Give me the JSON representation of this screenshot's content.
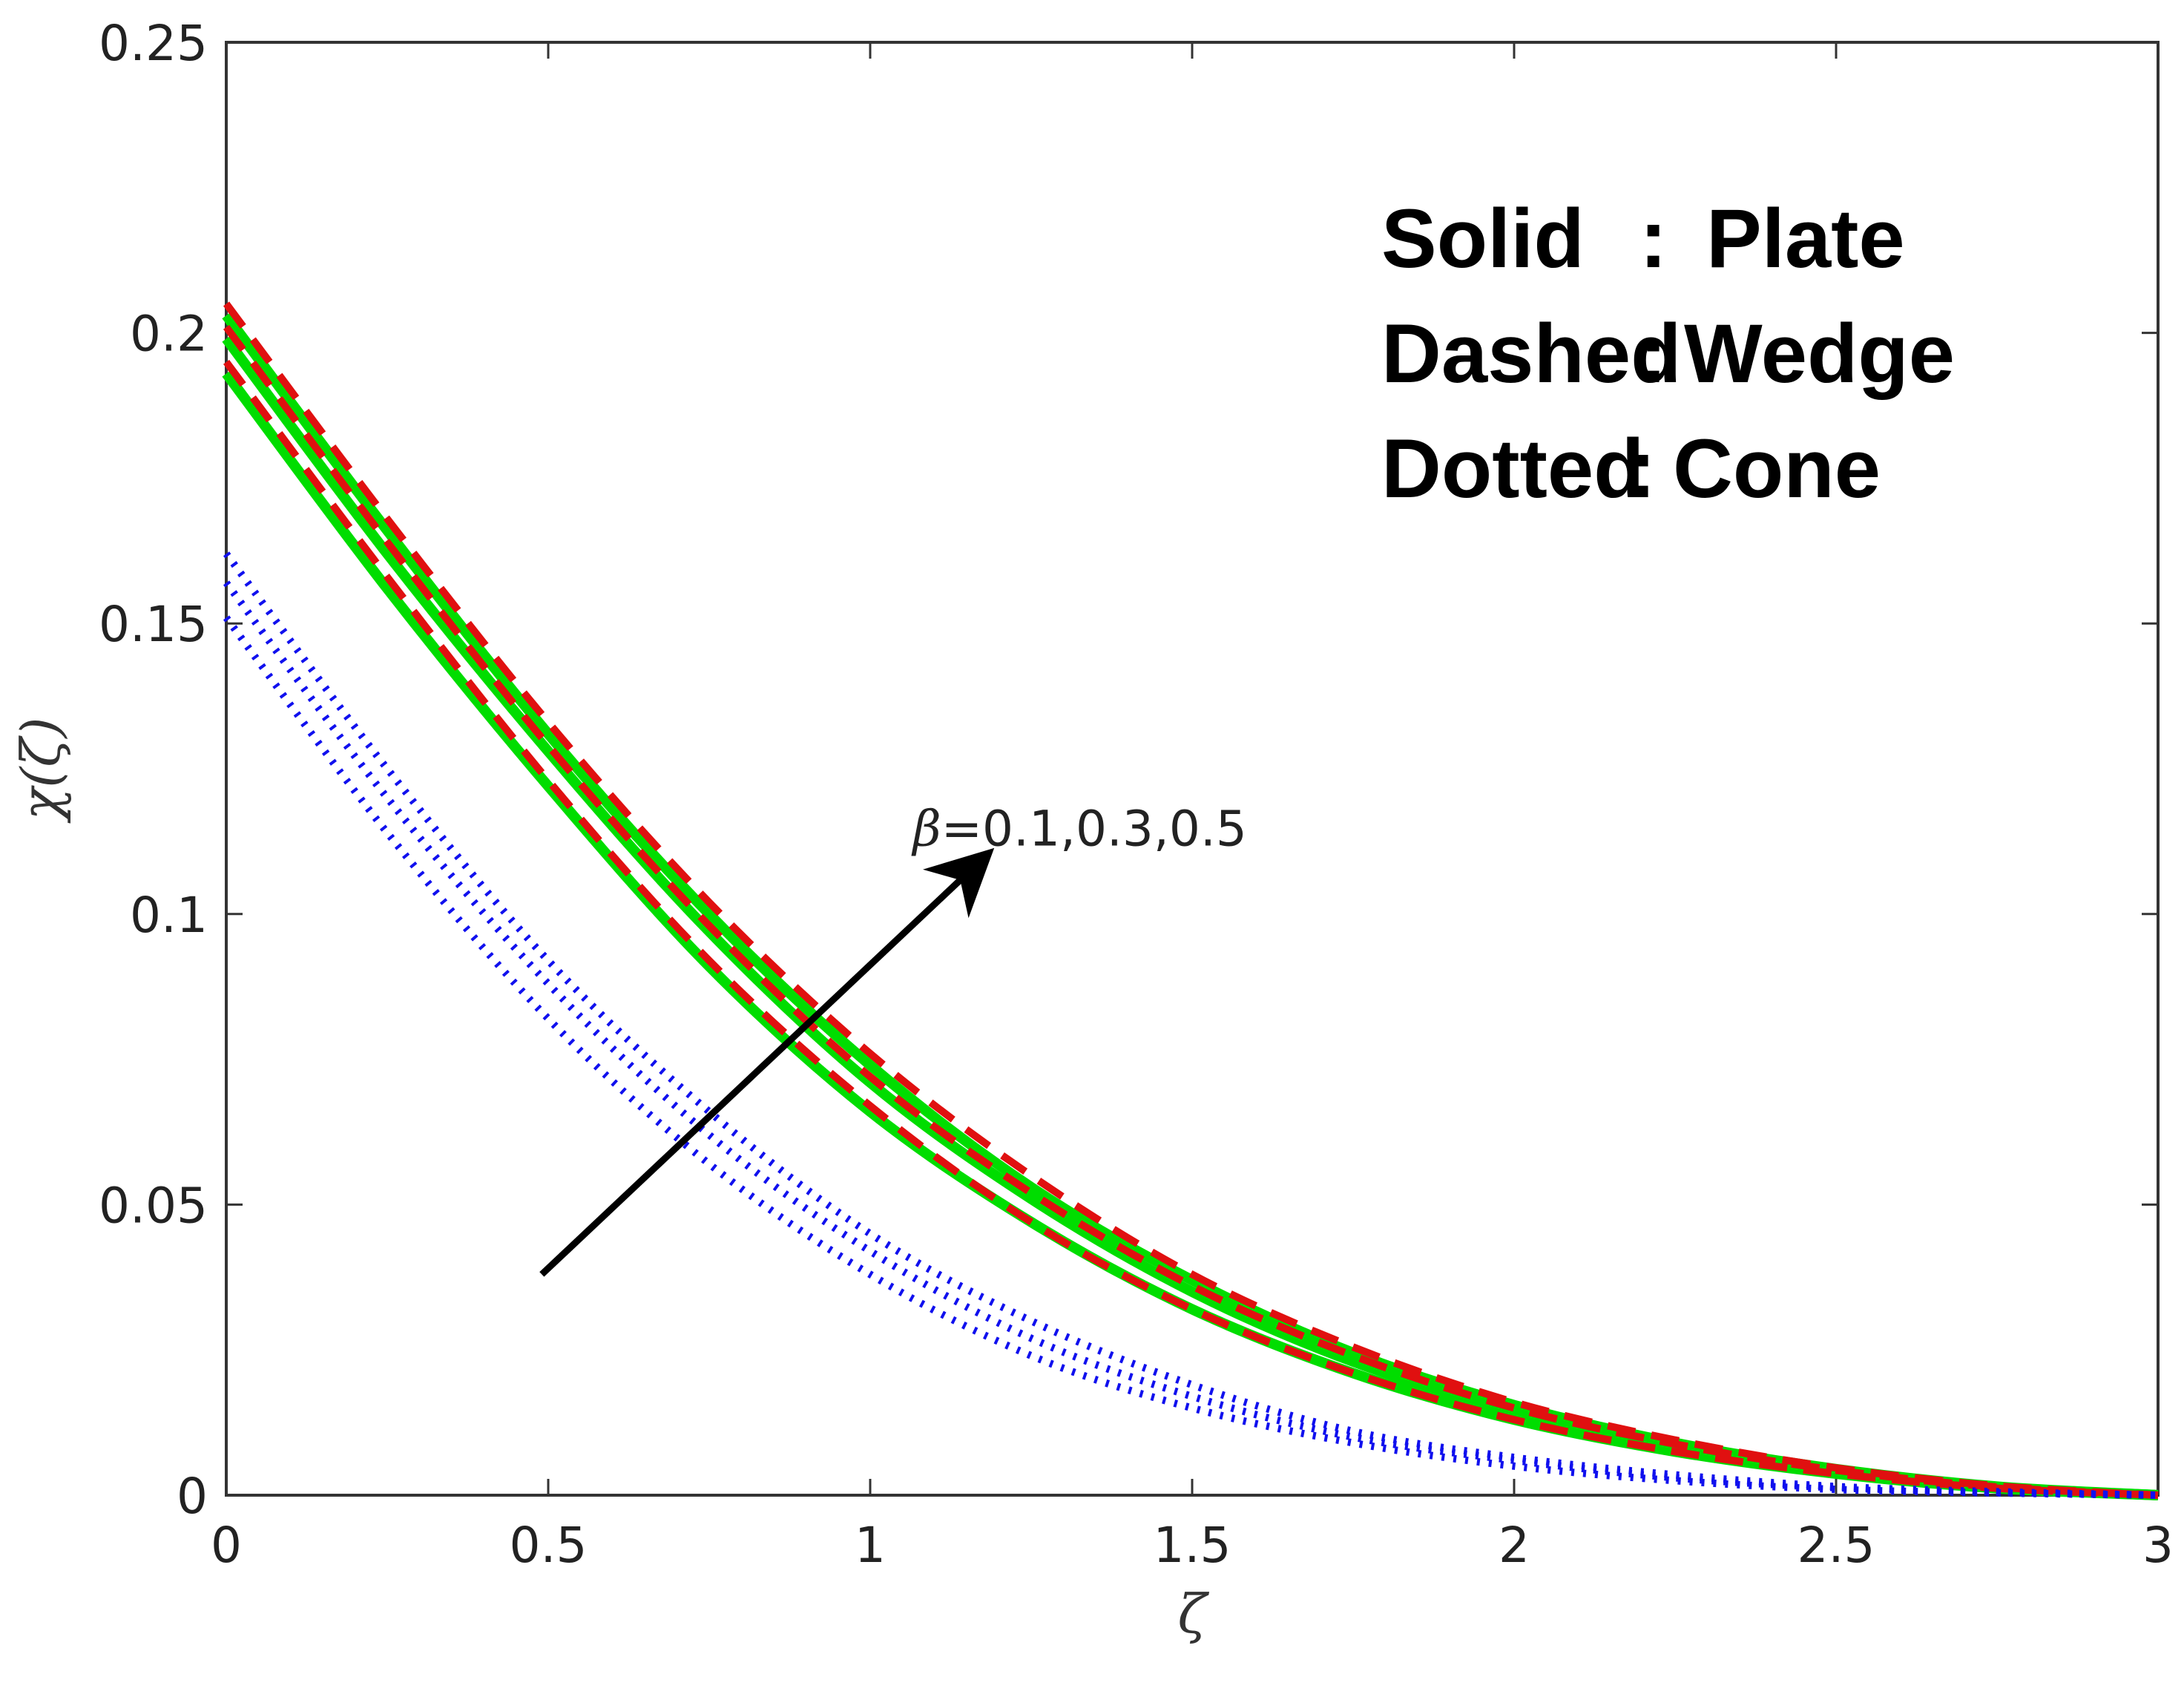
{
  "chart_data": {
    "type": "line",
    "xlabel": "ζ",
    "ylabel": "χ(ζ)",
    "xlim": [
      0,
      3
    ],
    "ylim": [
      0,
      0.25
    ],
    "xticks": [
      "0",
      "0.5",
      "1",
      "1.5",
      "2",
      "2.5",
      "3"
    ],
    "yticks": [
      "0",
      "0.05",
      "0.1",
      "0.15",
      "0.2",
      "0.25"
    ],
    "grid": false,
    "legend_lines": [
      {
        "key": "Solid",
        "sep": ":",
        "value": "Plate"
      },
      {
        "key": "Dashed",
        "sep": ":",
        "value": "Wedge"
      },
      {
        "key": "Dotted",
        "sep": ":",
        "value": "Cone"
      }
    ],
    "annotation": {
      "symbol": "β",
      "text": "=0.1,0.3,0.5",
      "arrow_from": [
        0.49,
        0.038
      ],
      "arrow_to": [
        1.17,
        0.109
      ]
    },
    "colors": {
      "plate": "#00dd00",
      "wedge": "#e01010",
      "cone": "#1010ee",
      "arrow": "#000000"
    },
    "x": [
      0,
      0.25,
      0.5,
      0.75,
      1,
      1.25,
      1.5,
      1.75,
      2,
      2.25,
      2.5,
      2.75,
      3
    ],
    "series": [
      {
        "style": "solid",
        "group": "plate",
        "values": [
          0.193,
          0.156,
          0.122,
          0.091,
          0.066,
          0.047,
          0.032,
          0.021,
          0.013,
          0.0075,
          0.0037,
          0.0012,
          0
        ]
      },
      {
        "style": "solid",
        "group": "plate",
        "values": [
          0.199,
          0.162,
          0.128,
          0.097,
          0.071,
          0.051,
          0.035,
          0.023,
          0.0145,
          0.0085,
          0.0042,
          0.0014,
          0
        ]
      },
      {
        "style": "solid",
        "group": "plate",
        "values": [
          0.203,
          0.166,
          0.131,
          0.1,
          0.074,
          0.053,
          0.037,
          0.0245,
          0.0155,
          0.009,
          0.0045,
          0.0015,
          0
        ]
      },
      {
        "style": "dashed",
        "group": "wedge",
        "values": [
          0.195,
          0.158,
          0.123,
          0.092,
          0.067,
          0.047,
          0.032,
          0.021,
          0.013,
          0.0075,
          0.0037,
          0.0012,
          0
        ]
      },
      {
        "style": "dashed",
        "group": "wedge",
        "values": [
          0.201,
          0.164,
          0.129,
          0.098,
          0.072,
          0.052,
          0.036,
          0.024,
          0.015,
          0.0088,
          0.0043,
          0.0014,
          0
        ]
      },
      {
        "style": "dashed",
        "group": "wedge",
        "values": [
          0.205,
          0.168,
          0.133,
          0.102,
          0.076,
          0.055,
          0.038,
          0.0255,
          0.016,
          0.0095,
          0.0047,
          0.0016,
          0
        ]
      },
      {
        "style": "dotted",
        "group": "cone",
        "values": [
          0.151,
          0.114,
          0.082,
          0.057,
          0.038,
          0.024,
          0.015,
          0.009,
          0.005,
          0.0025,
          0.001,
          0.0004,
          0
        ]
      },
      {
        "style": "dotted",
        "group": "cone",
        "values": [
          0.157,
          0.12,
          0.088,
          0.062,
          0.042,
          0.027,
          0.017,
          0.01,
          0.006,
          0.003,
          0.0013,
          0.0005,
          0
        ]
      },
      {
        "style": "dotted",
        "group": "cone",
        "values": [
          0.162,
          0.125,
          0.092,
          0.066,
          0.045,
          0.03,
          0.019,
          0.011,
          0.0065,
          0.0035,
          0.0015,
          0.0006,
          0
        ]
      }
    ]
  }
}
